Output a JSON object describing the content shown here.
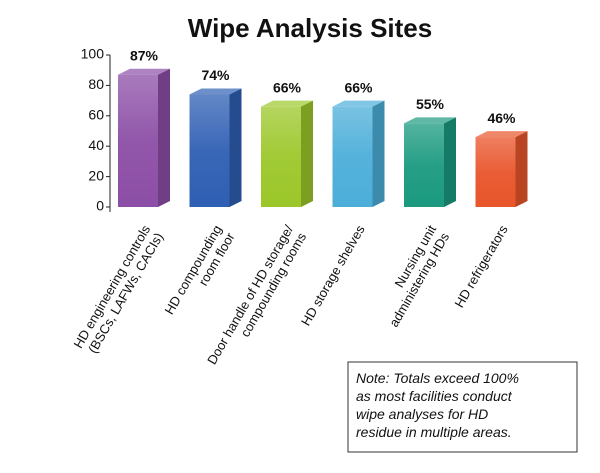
{
  "chart_data": {
    "type": "bar3d",
    "title": "Wipe Analysis Sites",
    "categories": [
      [
        "HD engineering controls",
        "(BSCs, LAFWs, CACIs)"
      ],
      [
        "HD compounding",
        "room floor"
      ],
      [
        "Door handle of HD storage/",
        "compounding rooms"
      ],
      [
        "HD storage shelves"
      ],
      [
        "Nursing unit",
        "administering HDs"
      ],
      [
        "HD refrigerators"
      ]
    ],
    "values": [
      87,
      74,
      66,
      66,
      55,
      46
    ],
    "value_labels": [
      "87%",
      "74%",
      "66%",
      "66%",
      "55%",
      "46%"
    ],
    "colors": [
      "#8c4ea6",
      "#2f5fb3",
      "#9cc72a",
      "#4caed9",
      "#1b9a80",
      "#e8552b"
    ],
    "ylim": [
      0,
      100
    ],
    "yticks": [
      0,
      20,
      40,
      60,
      80,
      100
    ],
    "note": [
      "Note: Totals exceed 100%",
      "as most facilities conduct",
      "wipe analyses for HD",
      "residue in multiple areas."
    ]
  }
}
